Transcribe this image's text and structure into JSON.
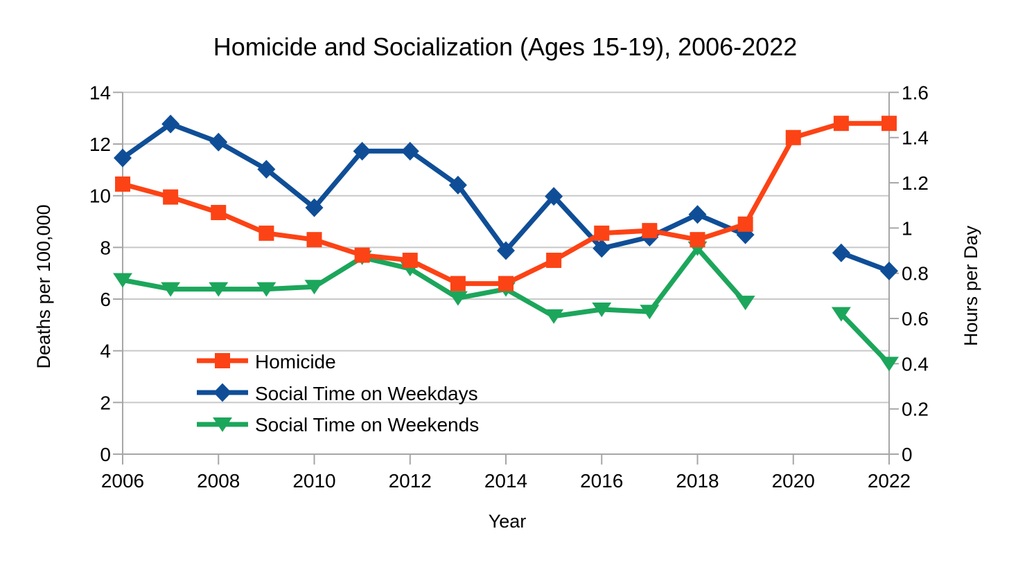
{
  "chart_data": {
    "type": "line",
    "title": "Homicide and Socialization (Ages 15-19), 2006-2022",
    "xlabel": "Year",
    "x": [
      2006,
      2007,
      2008,
      2009,
      2010,
      2011,
      2012,
      2013,
      2014,
      2015,
      2016,
      2017,
      2018,
      2019,
      2020,
      2021,
      2022
    ],
    "x_ticks": [
      "2006",
      "2008",
      "2010",
      "2012",
      "2014",
      "2016",
      "2018",
      "2020",
      "2022"
    ],
    "x_range": [
      2006,
      2022
    ],
    "grid": "horizontal",
    "legend_position": "inside-lower-left",
    "y_left": {
      "label": "Deaths per 100,000",
      "min": 0,
      "max": 14,
      "ticks": [
        "0",
        "2",
        "4",
        "6",
        "8",
        "10",
        "12",
        "14"
      ]
    },
    "y_right": {
      "label": "Hours per Day",
      "min": 0,
      "max": 1.6,
      "ticks": [
        "0",
        "0.2",
        "0.4",
        "0.6",
        "0.8",
        "1",
        "1.2",
        "1.4",
        "1.6"
      ]
    },
    "series": [
      {
        "name": "Homicide",
        "axis": "left",
        "marker": "square",
        "color": "#FC4315",
        "values": [
          10.45,
          9.95,
          9.35,
          8.55,
          8.3,
          7.7,
          7.5,
          6.6,
          6.6,
          7.5,
          8.55,
          8.65,
          8.3,
          8.9,
          12.25,
          12.8,
          12.8
        ]
      },
      {
        "name": "Social Time on Weekdays",
        "axis": "right",
        "marker": "diamond",
        "color": "#0F4E97",
        "values": [
          1.31,
          1.46,
          1.38,
          1.26,
          1.09,
          1.34,
          1.34,
          1.19,
          0.9,
          1.14,
          0.91,
          0.96,
          1.06,
          0.97,
          null,
          0.89,
          0.81
        ]
      },
      {
        "name": "Social Time on Weekends",
        "axis": "right",
        "marker": "triangle-down",
        "color": "#1CA65B",
        "values": [
          0.77,
          0.73,
          0.73,
          0.73,
          0.74,
          0.87,
          0.82,
          0.69,
          0.73,
          0.61,
          0.64,
          0.63,
          0.91,
          0.67,
          null,
          0.62,
          0.4
        ]
      }
    ]
  },
  "colors": {
    "grid": "#c8c8c8",
    "axis": "#a6a6a6",
    "text": "#000000",
    "background": "#ffffff"
  }
}
